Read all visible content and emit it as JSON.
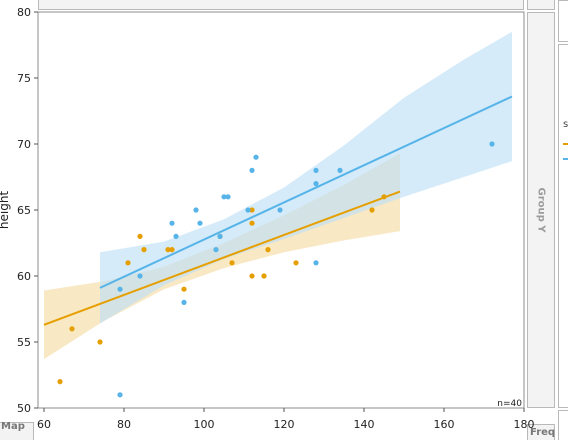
{
  "panels": {
    "group_y_label": "Group Y",
    "map_label": "Map",
    "freq_label": "Freq"
  },
  "legend": {
    "title_fragment": "s",
    "colors": [
      "#E69F00",
      "#56B4E9"
    ]
  },
  "chart_data": {
    "type": "scatter",
    "title": "",
    "xlabel": "",
    "ylabel": "height",
    "xlim": [
      58.5,
      180
    ],
    "ylim": [
      50,
      80
    ],
    "x_ticks": [
      60,
      80,
      100,
      120,
      140,
      160,
      180
    ],
    "y_ticks": [
      50,
      55,
      60,
      65,
      70,
      75,
      80
    ],
    "x_tick_labels": [
      "60",
      "80",
      "100",
      "120",
      "140",
      "160",
      "180"
    ],
    "y_tick_labels": [
      "50",
      "55",
      "60",
      "65",
      "70",
      "75",
      "80"
    ],
    "grid": false,
    "annotation": "n=40",
    "series": [
      {
        "color": "#E69F00",
        "band_color": "#F5DCA5",
        "points": [
          [
            64,
            52
          ],
          [
            67,
            56
          ],
          [
            74,
            55
          ],
          [
            81,
            61
          ],
          [
            84,
            63
          ],
          [
            85,
            62
          ],
          [
            91,
            62
          ],
          [
            92,
            62
          ],
          [
            95,
            59
          ],
          [
            104,
            63
          ],
          [
            107,
            61
          ],
          [
            112,
            65
          ],
          [
            112,
            60
          ],
          [
            112,
            64
          ],
          [
            115,
            60
          ],
          [
            116,
            62
          ],
          [
            123,
            61
          ],
          [
            142,
            65
          ],
          [
            145,
            66
          ]
        ],
        "fit_line": [
          [
            60,
            56.3
          ],
          [
            149,
            66.4
          ]
        ],
        "ci_upper": [
          [
            60,
            58.9
          ],
          [
            75,
            59.6
          ],
          [
            90,
            60.7
          ],
          [
            105,
            62.5
          ],
          [
            120,
            64.6
          ],
          [
            135,
            66.9
          ],
          [
            149,
            69.3
          ]
        ],
        "ci_lower": [
          [
            60,
            53.7
          ],
          [
            75,
            56.6
          ],
          [
            90,
            59.0
          ],
          [
            105,
            60.6
          ],
          [
            120,
            61.8
          ],
          [
            135,
            62.7
          ],
          [
            149,
            63.4
          ]
        ]
      },
      {
        "color": "#56B4E9",
        "band_color": "#BFE0F7",
        "points": [
          [
            79,
            51
          ],
          [
            79,
            59
          ],
          [
            84,
            60
          ],
          [
            92,
            64
          ],
          [
            93,
            63
          ],
          [
            95,
            58
          ],
          [
            98,
            65
          ],
          [
            99,
            64
          ],
          [
            103,
            62
          ],
          [
            104,
            63
          ],
          [
            105,
            66
          ],
          [
            106,
            66
          ],
          [
            111,
            65
          ],
          [
            112,
            68
          ],
          [
            113,
            69
          ],
          [
            119,
            65
          ],
          [
            128,
            68
          ],
          [
            128,
            67
          ],
          [
            128,
            61
          ],
          [
            134,
            68
          ],
          [
            172,
            70
          ]
        ],
        "fit_line": [
          [
            74,
            59.1
          ],
          [
            177,
            73.6
          ]
        ],
        "ci_upper": [
          [
            74,
            61.8
          ],
          [
            90,
            62.6
          ],
          [
            105,
            64.3
          ],
          [
            120,
            66.7
          ],
          [
            135,
            69.9
          ],
          [
            150,
            73.5
          ],
          [
            165,
            76.4
          ],
          [
            177,
            78.5
          ]
        ],
        "ci_lower": [
          [
            74,
            56.4
          ],
          [
            90,
            59.3
          ],
          [
            105,
            61.3
          ],
          [
            120,
            62.8
          ],
          [
            135,
            64.4
          ],
          [
            150,
            66.0
          ],
          [
            165,
            67.5
          ],
          [
            177,
            68.7
          ]
        ]
      }
    ]
  }
}
